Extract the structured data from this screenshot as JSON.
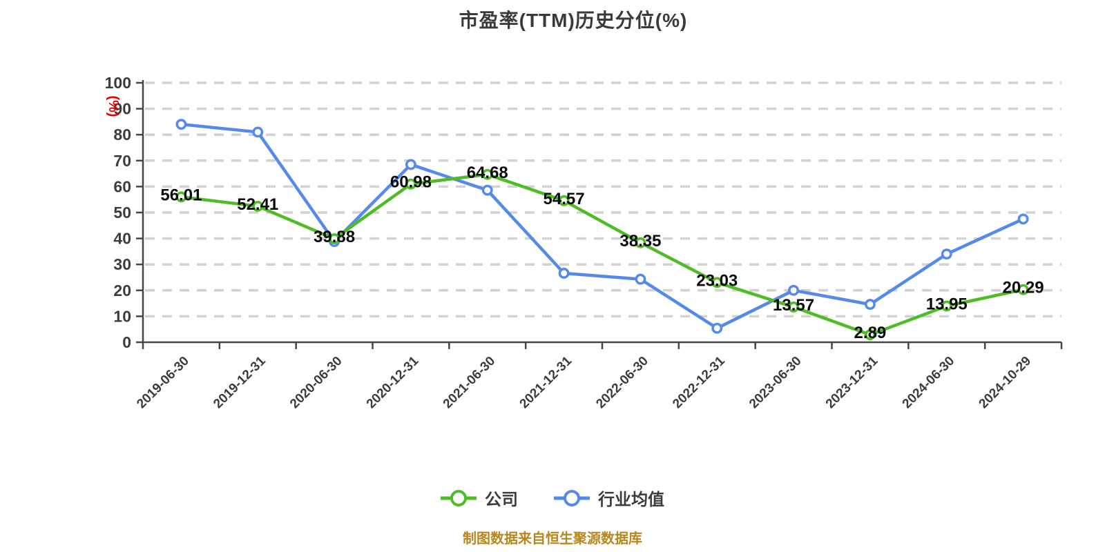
{
  "title": "市盈率(TTM)历史分位(%)",
  "footer": "制图数据来自恒生聚源数据库",
  "colors": {
    "background": "#ffffff",
    "title": "#3a3a3a",
    "grid": "#d2d2d2",
    "axis": "#454545",
    "tick_label": "#3c3c3c",
    "value_label": "#0a0a0a",
    "unit_label": "#e60000",
    "legend_text": "#3c3c3c",
    "footer_text": "#b8861e",
    "company": "#4fbc26",
    "industry": "#5689ec",
    "marker_fill": "#ffffff"
  },
  "chart_data": {
    "type": "line",
    "title": "市盈率(TTM)历史分位(%)",
    "y_axis_unit_label": "(%)",
    "xlabel": "",
    "ylabel": "(%)",
    "ylim": [
      0,
      100
    ],
    "y_tick_step": 10,
    "y_ticks": [
      0,
      10,
      20,
      30,
      40,
      50,
      60,
      70,
      80,
      90,
      100
    ],
    "grid": "horizontal-dashed",
    "legend_position": "bottom",
    "categories": [
      "2019-06-30",
      "2019-12-31",
      "2020-06-30",
      "2020-12-31",
      "2021-06-30",
      "2021-12-31",
      "2022-06-30",
      "2022-12-31",
      "2023-06-30",
      "2023-12-31",
      "2024-06-30",
      "2024-10-29"
    ],
    "series": [
      {
        "name": "公司",
        "color": "#4fbc26",
        "show_value_labels": true,
        "values": [
          56.01,
          52.41,
          39.88,
          60.98,
          64.68,
          54.57,
          38.35,
          23.03,
          13.57,
          2.89,
          13.95,
          20.29
        ]
      },
      {
        "name": "行业均值",
        "color": "#5689ec",
        "show_value_labels": false,
        "values": [
          84,
          81,
          38.8,
          68.5,
          58.6,
          26.6,
          24.3,
          5.4,
          20,
          14.6,
          34,
          47.5
        ]
      }
    ]
  }
}
